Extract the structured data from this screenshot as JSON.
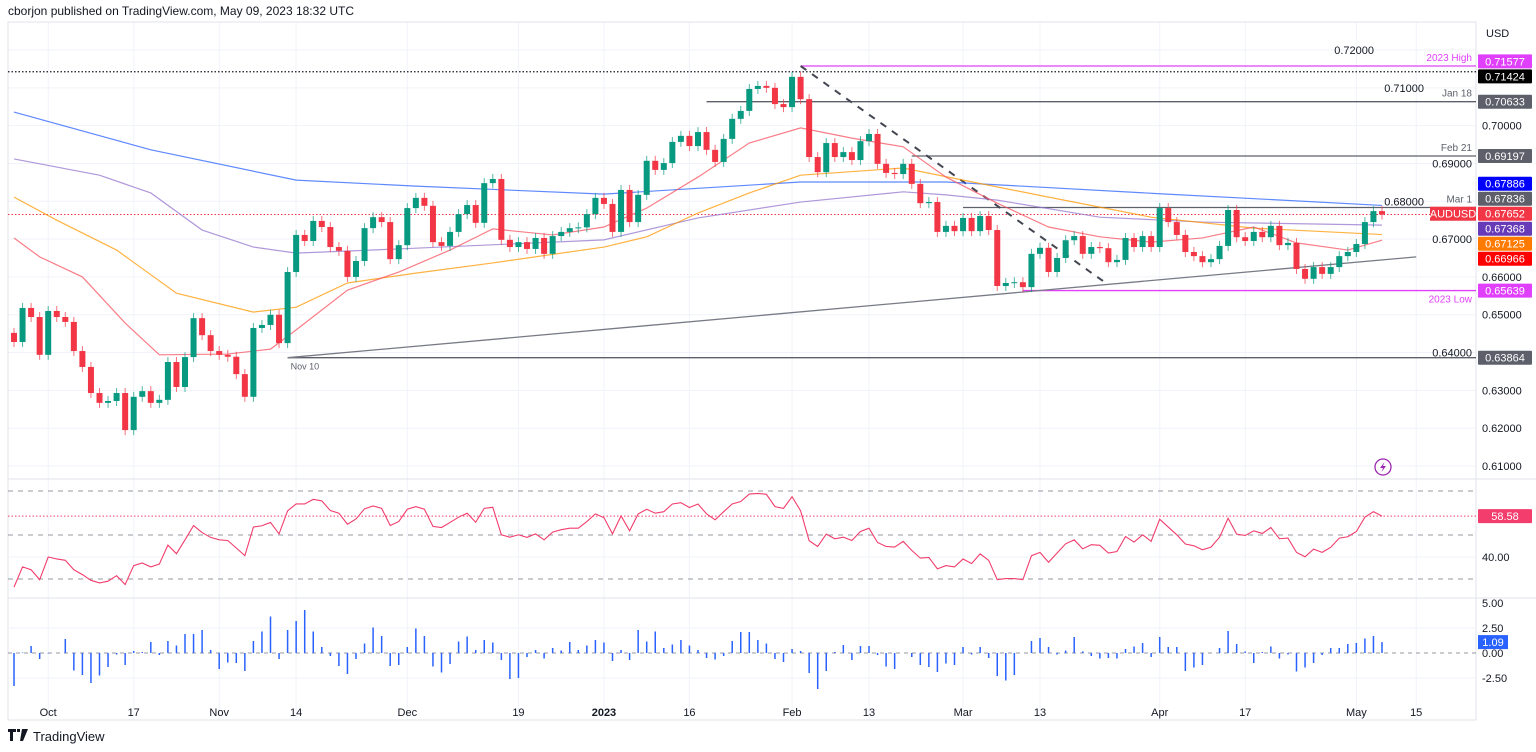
{
  "header": {
    "text": "cborjon published on TradingView.com, May 09, 2023 18:32 UTC"
  },
  "footer": {
    "brand": "TradingView",
    "logo_icon": "tradingview-logo-icon"
  },
  "colors": {
    "up": "#089981",
    "down": "#f23645",
    "ma_red": "#f7525f",
    "ma_orange": "#ff9800",
    "ma_purple": "#9575cd",
    "ma_blue": "#2962ff",
    "rsi": "#f23d6d",
    "histogram": "#2962ff",
    "level_magenta": "#e040fb",
    "level_grey": "#5d606b"
  },
  "chart_data": [
    {
      "type": "candlestick",
      "symbol": "AUDUSD",
      "currency_label": "USD",
      "ylim": [
        0.605,
        0.7225
      ],
      "y_ticks": [
        "0.72000",
        "0.71000",
        "0.70000",
        "0.69000",
        "0.68000",
        "0.67000",
        "0.66000",
        "0.65000",
        "0.64000",
        "0.63000",
        "0.62000",
        "0.61000"
      ],
      "x_ticks": [
        {
          "label": "Oct",
          "candle": 5
        },
        {
          "label": "17",
          "candle": 15
        },
        {
          "label": "Nov",
          "candle": 25
        },
        {
          "label": "14",
          "candle": 34
        },
        {
          "label": "Dec",
          "candle": 47
        },
        {
          "label": "19",
          "candle": 60
        },
        {
          "label": "2023",
          "candle": 70
        },
        {
          "label": "16",
          "candle": 80
        },
        {
          "label": "Feb",
          "candle": 92
        },
        {
          "label": "13",
          "candle": 101
        },
        {
          "label": "Mar",
          "candle": 112
        },
        {
          "label": "13",
          "candle": 121
        },
        {
          "label": "Apr",
          "candle": 135
        },
        {
          "label": "17",
          "candle": 145
        },
        {
          "label": "May",
          "candle": 158
        },
        {
          "label": "15",
          "candle": 165
        }
      ],
      "first_open": 0.6452,
      "close": [
        0.6428,
        0.6518,
        0.6494,
        0.6394,
        0.651,
        0.6494,
        0.6481,
        0.6404,
        0.6362,
        0.6293,
        0.6267,
        0.6272,
        0.6293,
        0.6195,
        0.6283,
        0.6298,
        0.6267,
        0.6275,
        0.6375,
        0.6309,
        0.6388,
        0.6491,
        0.6446,
        0.6404,
        0.6394,
        0.6389,
        0.6343,
        0.6283,
        0.6465,
        0.6473,
        0.65,
        0.6425,
        0.6613,
        0.6711,
        0.6695,
        0.6748,
        0.6732,
        0.6679,
        0.6669,
        0.66,
        0.6642,
        0.6729,
        0.6758,
        0.6745,
        0.6647,
        0.6684,
        0.6782,
        0.6809,
        0.6788,
        0.6692,
        0.6682,
        0.6719,
        0.6766,
        0.679,
        0.6743,
        0.6848,
        0.6859,
        0.6698,
        0.6679,
        0.6692,
        0.6674,
        0.6703,
        0.6661,
        0.6708,
        0.6719,
        0.6729,
        0.6731,
        0.6766,
        0.6809,
        0.6793,
        0.6719,
        0.683,
        0.6745,
        0.6817,
        0.6907,
        0.6883,
        0.6901,
        0.6957,
        0.6973,
        0.6946,
        0.6983,
        0.6936,
        0.6904,
        0.6965,
        0.7018,
        0.7039,
        0.7097,
        0.7105,
        0.71,
        0.7057,
        0.7049,
        0.7129,
        0.707,
        0.6917,
        0.6877,
        0.6954,
        0.6917,
        0.693,
        0.6909,
        0.6959,
        0.6978,
        0.6899,
        0.6875,
        0.6872,
        0.6899,
        0.6846,
        0.6795,
        0.6798,
        0.6719,
        0.6735,
        0.6721,
        0.6756,
        0.6721,
        0.6761,
        0.6724,
        0.6576,
        0.6584,
        0.6586,
        0.6573,
        0.6661,
        0.6677,
        0.6613,
        0.665,
        0.6697,
        0.6708,
        0.6661,
        0.6679,
        0.6676,
        0.6639,
        0.6645,
        0.6703,
        0.6679,
        0.6708,
        0.6679,
        0.6782,
        0.6745,
        0.6711,
        0.6666,
        0.6655,
        0.6639,
        0.6647,
        0.6682,
        0.6777,
        0.6705,
        0.6695,
        0.6719,
        0.6705,
        0.6735,
        0.6684,
        0.669,
        0.6621,
        0.6595,
        0.6626,
        0.6608,
        0.6626,
        0.6655,
        0.6666,
        0.6687,
        0.6745,
        0.6774,
        0.6765
      ],
      "moving_averages": [
        {
          "color_key": "ma_blue",
          "points": [
            [
              1,
              0.7036
            ],
            [
              17,
              0.6936
            ],
            [
              34,
              0.6856
            ],
            [
              48,
              0.684
            ],
            [
              70,
              0.6819
            ],
            [
              93,
              0.6851
            ],
            [
              110,
              0.6851
            ],
            [
              135,
              0.682
            ],
            [
              161,
              0.6789
            ]
          ]
        },
        {
          "color_key": "ma_purple",
          "points": [
            [
              1,
              0.6912
            ],
            [
              11,
              0.6869
            ],
            [
              17,
              0.6822
            ],
            [
              23,
              0.6724
            ],
            [
              29,
              0.6679
            ],
            [
              34,
              0.6663
            ],
            [
              46,
              0.6674
            ],
            [
              70,
              0.6698
            ],
            [
              81,
              0.6756
            ],
            [
              93,
              0.6798
            ],
            [
              105,
              0.6825
            ],
            [
              110,
              0.6817
            ],
            [
              116,
              0.6803
            ],
            [
              128,
              0.6758
            ],
            [
              140,
              0.6745
            ],
            [
              161,
              0.6737
            ]
          ]
        },
        {
          "color_key": "ma_orange",
          "points": [
            [
              1,
              0.6811
            ],
            [
              6,
              0.675
            ],
            [
              13,
              0.6671
            ],
            [
              20,
              0.6557
            ],
            [
              29,
              0.6507
            ],
            [
              34,
              0.652
            ],
            [
              40,
              0.6584
            ],
            [
              48,
              0.661
            ],
            [
              57,
              0.6637
            ],
            [
              70,
              0.6679
            ],
            [
              75,
              0.6706
            ],
            [
              81,
              0.6769
            ],
            [
              87,
              0.6822
            ],
            [
              93,
              0.6869
            ],
            [
              105,
              0.6888
            ],
            [
              112,
              0.6856
            ],
            [
              122,
              0.6811
            ],
            [
              134,
              0.6758
            ],
            [
              146,
              0.6729
            ],
            [
              161,
              0.6712
            ]
          ]
        },
        {
          "color_key": "ma_red",
          "points": [
            [
              1,
              0.6703
            ],
            [
              4,
              0.6653
            ],
            [
              9,
              0.66
            ],
            [
              14,
              0.6478
            ],
            [
              18,
              0.6394
            ],
            [
              26,
              0.6396
            ],
            [
              31,
              0.6409
            ],
            [
              34,
              0.646
            ],
            [
              40,
              0.6565
            ],
            [
              46,
              0.6613
            ],
            [
              52,
              0.6671
            ],
            [
              57,
              0.6727
            ],
            [
              64,
              0.6711
            ],
            [
              70,
              0.6732
            ],
            [
              75,
              0.6782
            ],
            [
              81,
              0.6864
            ],
            [
              87,
              0.6954
            ],
            [
              93,
              0.6994
            ],
            [
              99,
              0.6967
            ],
            [
              105,
              0.6944
            ],
            [
              110,
              0.6864
            ],
            [
              116,
              0.6795
            ],
            [
              122,
              0.6732
            ],
            [
              128,
              0.6706
            ],
            [
              134,
              0.6692
            ],
            [
              140,
              0.6703
            ],
            [
              146,
              0.6732
            ],
            [
              151,
              0.669
            ],
            [
              157,
              0.6671
            ],
            [
              161,
              0.6697
            ]
          ]
        }
      ],
      "levels": [
        {
          "label": "2023 High",
          "value": 0.71577,
          "value_text": "0.71577",
          "from_candle": 93,
          "color_key": "level_magenta",
          "badge_bg": "#e040fb",
          "badge_fg": "#ffffff"
        },
        {
          "label": "",
          "value": 0.71424,
          "value_text": "0.71424",
          "from_candle": 0,
          "dotted": true,
          "color_key": "",
          "badge_bg": "#000000",
          "badge_fg": "#ffffff"
        },
        {
          "label": "Jan 18",
          "value": 0.70633,
          "value_text": "0.70633",
          "from_candle": 82,
          "color_key": "level_grey",
          "badge_bg": "#5d606b",
          "badge_fg": "#ffffff"
        },
        {
          "label": "Feb 21",
          "value": 0.69197,
          "value_text": "0.69197",
          "from_candle": 106,
          "color_key": "level_grey",
          "badge_bg": "#5d606b",
          "badge_fg": "#ffffff"
        },
        {
          "label": "Mar 1",
          "value": 0.67836,
          "value_text": "0.67836",
          "from_candle": 112,
          "color_key": "level_grey",
          "badge_bg": "#5d606b",
          "badge_fg": "#ffffff"
        },
        {
          "label": "2023 Low",
          "value": 0.65639,
          "value_text": "0.65639",
          "from_candle": 119,
          "color_key": "level_magenta",
          "badge_bg": "#e040fb",
          "badge_fg": "#ffffff"
        },
        {
          "label": "Nov 10",
          "value": 0.63864,
          "value_text": "0.63864",
          "from_candle": 33,
          "color_key": "level_grey",
          "badge_bg": "#5d606b",
          "badge_fg": "#ffffff"
        }
      ],
      "ma_badges": [
        {
          "value": 0.67886,
          "value_text": "0.67886",
          "bg": "#0000ff"
        },
        {
          "value": 0.67368,
          "value_text": "0.67368",
          "bg": "#673ab7"
        },
        {
          "value": 0.67125,
          "value_text": "0.67125",
          "bg": "#ff7a00"
        },
        {
          "value": 0.66966,
          "value_text": "0.66966",
          "bg": "#ff0000"
        }
      ],
      "last_price": {
        "symbol": "AUDUSD",
        "value": 0.67652,
        "value_text": "0.67652",
        "bg": "#f23645"
      },
      "trendlines": [
        {
          "from": [
            33,
            0.63864
          ],
          "to": [
            165,
            0.6653
          ],
          "style": "solid"
        },
        {
          "from": [
            93,
            0.71577
          ],
          "to": [
            129,
            0.6579
          ],
          "style": "dashed"
        }
      ]
    },
    {
      "type": "line",
      "pane": "rsi",
      "ylim": [
        25,
        75
      ],
      "y_ticks": [
        "40.00"
      ],
      "bands": [
        70,
        50,
        30
      ],
      "last_value_text": "58.58",
      "values": [
        26.3,
        35.5,
        34.2,
        29.7,
        40.0,
        39.1,
        38.5,
        34.2,
        32.0,
        29.4,
        28.2,
        29.0,
        31.5,
        27.5,
        36.1,
        37.3,
        35.5,
        36.8,
        45.4,
        41.5,
        47.8,
        54.3,
        51.1,
        48.9,
        47.8,
        47.5,
        44.1,
        40.6,
        53.6,
        54.2,
        55.7,
        50.5,
        61.0,
        64.1,
        64.1,
        66.2,
        65.5,
        61.1,
        59.9,
        54.9,
        57.3,
        61.9,
        63.2,
        62.1,
        54.3,
        56.1,
        61.7,
        62.9,
        61.7,
        53.9,
        53.4,
        55.7,
        58.1,
        59.9,
        55.8,
        62.1,
        62.6,
        50.1,
        49.0,
        50.1,
        48.9,
        50.5,
        47.8,
        51.3,
        52.4,
        53.1,
        53.1,
        56.1,
        59.6,
        57.9,
        50.5,
        58.7,
        51.9,
        59.6,
        61.7,
        59.9,
        60.6,
        64.1,
        64.7,
        62.5,
        64.1,
        59.6,
        56.9,
        60.6,
        64.1,
        65.2,
        68.6,
        68.9,
        68.5,
        62.9,
        62.1,
        67.4,
        61.0,
        47.4,
        44.8,
        50.4,
        48.3,
        49.0,
        47.5,
        51.6,
        53.1,
        46.6,
        44.8,
        44.5,
        47.1,
        43.0,
        39.5,
        39.8,
        34.6,
        36.1,
        35.5,
        39.1,
        37.0,
        41.4,
        38.5,
        29.7,
        30.2,
        30.2,
        29.7,
        40.6,
        42.1,
        37.6,
        41.8,
        46.0,
        47.8,
        43.7,
        45.6,
        45.3,
        41.8,
        42.5,
        49.3,
        46.8,
        50.1,
        47.1,
        57.2,
        53.6,
        50.1,
        45.9,
        45.1,
        43.3,
        44.5,
        49.0,
        57.6,
        50.4,
        49.8,
        51.9,
        50.7,
        53.4,
        48.3,
        48.6,
        42.1,
        40.1,
        43.6,
        42.1,
        44.4,
        48.6,
        49.2,
        51.6,
        58.1,
        60.6,
        58.58
      ]
    },
    {
      "type": "bar",
      "pane": "histogram",
      "ylim": [
        -4.5,
        5.3
      ],
      "y_ticks": [
        "5.00",
        "2.50",
        "0.00",
        "-2.50"
      ],
      "last_value_text": "1.09",
      "values": [
        -3.3,
        0.05,
        0.7,
        -0.6,
        -0.05,
        0,
        1.4,
        -1.75,
        -2.2,
        -3.0,
        -2.25,
        -1.4,
        -0.15,
        -1.2,
        0.2,
        0.1,
        1.1,
        -0.2,
        1.2,
        0.75,
        1.9,
        1.9,
        2.3,
        0.3,
        -1.6,
        -0.95,
        -1.0,
        -1.8,
        1.2,
        2.15,
        3.65,
        -0.6,
        2.3,
        3.2,
        4.3,
        2.15,
        0.6,
        -0.3,
        -1.3,
        -2.1,
        -0.6,
        0.95,
        2.55,
        1.7,
        -1.3,
        -1.2,
        0.6,
        2.45,
        1.7,
        -1.35,
        -1.95,
        -1.1,
        1.15,
        1.65,
        0.3,
        1.3,
        1.05,
        -0.7,
        -2.6,
        -2.5,
        -0.4,
        0.3,
        -0.55,
        0.5,
        0.25,
        1.1,
        0.3,
        0.75,
        1.3,
        1.05,
        -0.8,
        0.3,
        -0.7,
        2.3,
        1.15,
        2.15,
        0.5,
        0.85,
        1.3,
        0.75,
        0.3,
        -0.5,
        -0.65,
        -0.3,
        1.2,
        2.1,
        2.1,
        1.3,
        0.95,
        -0.6,
        -0.9,
        0.4,
        0.2,
        -2.0,
        -3.6,
        -1.8,
        0.1,
        0.8,
        -0.7,
        0.7,
        0.7,
        -0.2,
        -1.35,
        -1.6,
        0,
        -0.4,
        -1.2,
        -1.4,
        -1.9,
        -1.05,
        -1.2,
        0.6,
        -0.15,
        0.6,
        -0.5,
        -2.3,
        -2.75,
        -2.2,
        0,
        1.2,
        1.5,
        0.6,
        -0.15,
        0.25,
        1.6,
        0.15,
        -0.3,
        -0.55,
        -0.5,
        -0.55,
        0.4,
        0.65,
        1.0,
        -0.4,
        1.6,
        0.6,
        0.6,
        -1.8,
        -1.45,
        -1.2,
        0,
        0.5,
        2.2,
        0.9,
        0.15,
        -1.0,
        0.1,
        0.65,
        -0.55,
        -0.15,
        -1.85,
        -1.45,
        -1.0,
        -0.2,
        0.5,
        0.5,
        0.9,
        1.0,
        1.45,
        1.7,
        1.09
      ]
    }
  ]
}
